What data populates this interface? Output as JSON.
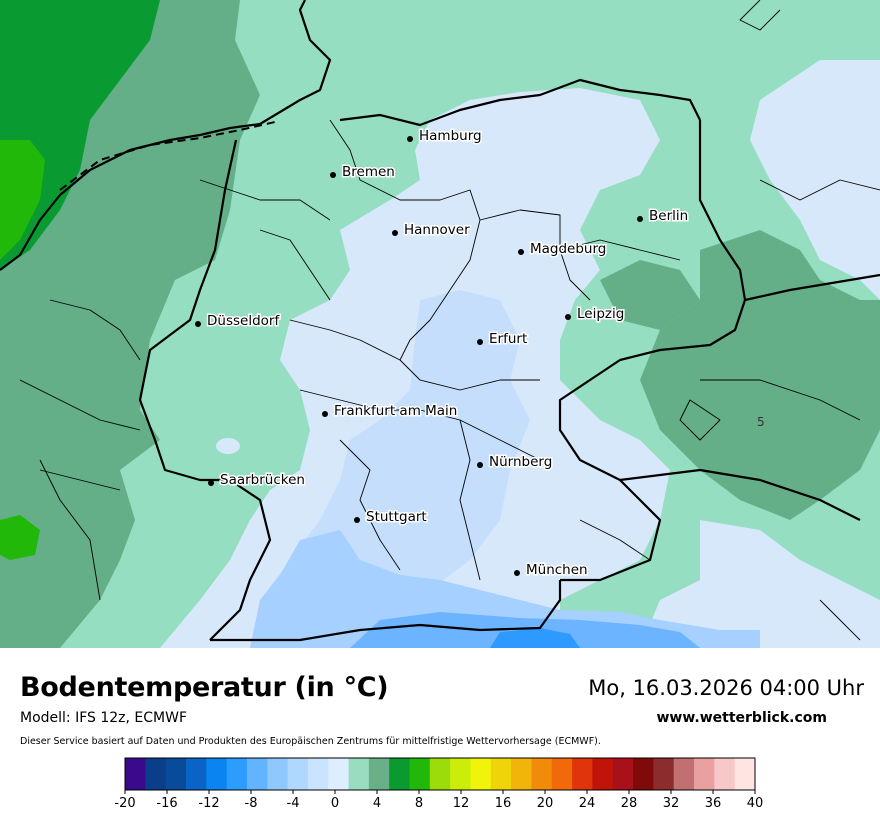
{
  "map": {
    "cities": [
      {
        "name": "Hamburg"
      },
      {
        "name": "Bremen"
      },
      {
        "name": "Hannover"
      },
      {
        "name": "Berlin"
      },
      {
        "name": "Magdeburg"
      },
      {
        "name": "Leipzig"
      },
      {
        "name": "Düsseldorf"
      },
      {
        "name": "Erfurt"
      },
      {
        "name": "Frankfurt am Main"
      },
      {
        "name": "Nürnberg"
      },
      {
        "name": "Saarbrücken"
      },
      {
        "name": "Stuttgart"
      },
      {
        "name": "München"
      }
    ],
    "contour_label": "5"
  },
  "header": {
    "title": "Bodentemperatur (in °C)",
    "datetime": "Mo, 16.03.2026 04:00 Uhr",
    "model": "Modell: IFS 12z, ECMWF",
    "site": "www.wetterblick.com",
    "disclaimer": "Dieser Service basiert auf Daten und Produkten des Europäischen Zentrums für mittelfristige Wettervorhersage (ECMWF)."
  },
  "legend": {
    "ticks": [
      "-20",
      "-16",
      "-12",
      "-8",
      "-4",
      "0",
      "4",
      "8",
      "12",
      "16",
      "20",
      "24",
      "28",
      "32",
      "36",
      "40"
    ],
    "colors": [
      "#3a0a8c",
      "#0a3d8a",
      "#0a4a9a",
      "#0a64c8",
      "#0a84f0",
      "#2c9cff",
      "#62b4ff",
      "#8ec8ff",
      "#b0d8ff",
      "#c8e4ff",
      "#ddeeff",
      "#9adcc0",
      "#68b088",
      "#0a9a30",
      "#22b80a",
      "#9cdc0a",
      "#ccec0a",
      "#f0f40a",
      "#f0d40a",
      "#f0b40a",
      "#f08c0a",
      "#f06a0a",
      "#e0340a",
      "#c0140a",
      "#a8101a",
      "#800a0a",
      "#8c2c2c",
      "#c07070",
      "#e8a0a0",
      "#f8c8c8",
      "#ffe4e4"
    ]
  },
  "palette": {
    "cold_light": "#d8e8fb",
    "cold_mid": "#c4defc",
    "cold_blue": "#a6d0ff",
    "cold_deep": "#6cb4ff",
    "cold_strong": "#2e9aff",
    "mint": "#96deC2",
    "teal": "#64ae88",
    "green": "#0a9a32",
    "bright_green": "#22b80a"
  }
}
